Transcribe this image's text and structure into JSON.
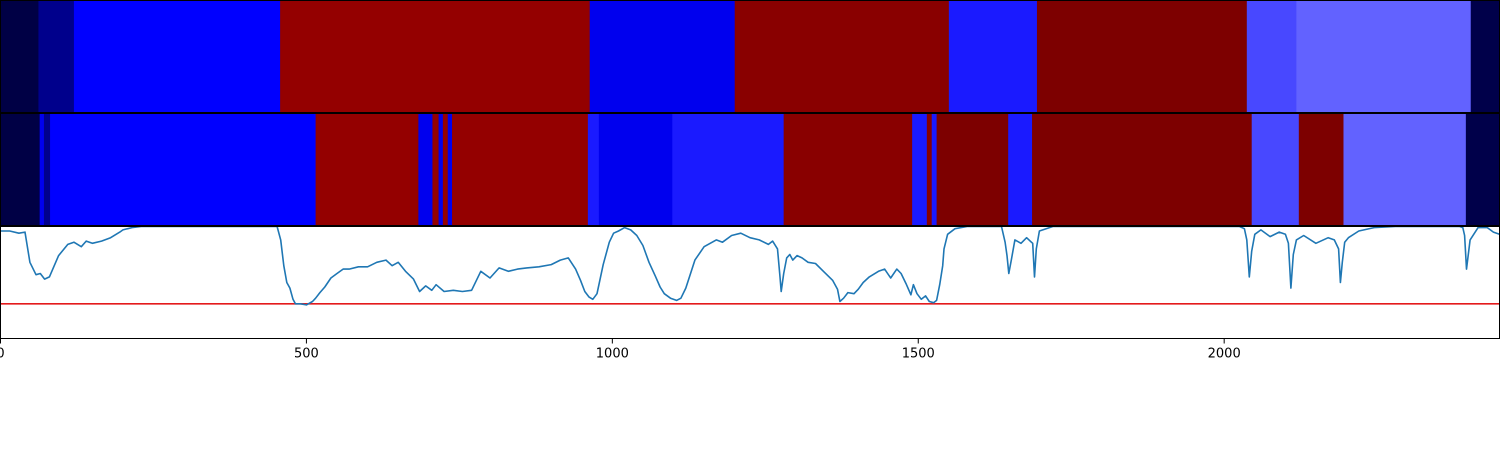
{
  "chart_data": [
    {
      "type": "heatmap",
      "panel": "segmentation-track-top",
      "x_range": [
        0,
        2450
      ],
      "segments": [
        {
          "start": 0,
          "end": 62,
          "color": "#000045"
        },
        {
          "start": 62,
          "end": 120,
          "color": "#00008c"
        },
        {
          "start": 120,
          "end": 457,
          "color": "#0000ff"
        },
        {
          "start": 457,
          "end": 963,
          "color": "#940000"
        },
        {
          "start": 963,
          "end": 1200,
          "color": "#0000ee"
        },
        {
          "start": 1200,
          "end": 1550,
          "color": "#890000"
        },
        {
          "start": 1550,
          "end": 1694,
          "color": "#1a1aff"
        },
        {
          "start": 1694,
          "end": 2037,
          "color": "#7d0000"
        },
        {
          "start": 2037,
          "end": 2118,
          "color": "#4848ff"
        },
        {
          "start": 2118,
          "end": 2403,
          "color": "#6262ff"
        },
        {
          "start": 2403,
          "end": 2450,
          "color": "#00004a"
        }
      ]
    },
    {
      "type": "heatmap",
      "panel": "segmentation-track-bottom",
      "x_range": [
        0,
        2450
      ],
      "segments": [
        {
          "start": 0,
          "end": 64,
          "color": "#000045"
        },
        {
          "start": 64,
          "end": 71,
          "color": "#0000ee"
        },
        {
          "start": 71,
          "end": 81,
          "color": "#00008c"
        },
        {
          "start": 81,
          "end": 515,
          "color": "#0000ff"
        },
        {
          "start": 515,
          "end": 683,
          "color": "#940000"
        },
        {
          "start": 683,
          "end": 706,
          "color": "#0000ee"
        },
        {
          "start": 706,
          "end": 716,
          "color": "#940000"
        },
        {
          "start": 716,
          "end": 723,
          "color": "#0000ee"
        },
        {
          "start": 723,
          "end": 731,
          "color": "#940000"
        },
        {
          "start": 731,
          "end": 738,
          "color": "#0000ee"
        },
        {
          "start": 738,
          "end": 960,
          "color": "#940000"
        },
        {
          "start": 960,
          "end": 978,
          "color": "#1a1aff"
        },
        {
          "start": 978,
          "end": 1098,
          "color": "#0000ee"
        },
        {
          "start": 1098,
          "end": 1280,
          "color": "#1a1aff"
        },
        {
          "start": 1280,
          "end": 1490,
          "color": "#890000"
        },
        {
          "start": 1490,
          "end": 1514,
          "color": "#1a1aff"
        },
        {
          "start": 1514,
          "end": 1522,
          "color": "#890000"
        },
        {
          "start": 1522,
          "end": 1530,
          "color": "#1a1aff"
        },
        {
          "start": 1530,
          "end": 1647,
          "color": "#7d0000"
        },
        {
          "start": 1647,
          "end": 1686,
          "color": "#1a1aff"
        },
        {
          "start": 1686,
          "end": 2045,
          "color": "#7d0000"
        },
        {
          "start": 2045,
          "end": 2122,
          "color": "#4848ff"
        },
        {
          "start": 2122,
          "end": 2195,
          "color": "#7d0000"
        },
        {
          "start": 2195,
          "end": 2395,
          "color": "#6262ff"
        },
        {
          "start": 2395,
          "end": 2450,
          "color": "#00004a"
        }
      ]
    },
    {
      "type": "line",
      "panel": "score-plot",
      "xlim": [
        0,
        2450
      ],
      "ylim": [
        0,
        1
      ],
      "series_color": "#1f77b4",
      "threshold": {
        "y": 0.31,
        "color": "#e41a1c"
      },
      "x": [
        0,
        15,
        30,
        40,
        48,
        58,
        65,
        72,
        80,
        95,
        110,
        120,
        132,
        140,
        150,
        165,
        180,
        195,
        200,
        215,
        230,
        250,
        300,
        350,
        400,
        420,
        440,
        452,
        458,
        463,
        468,
        473,
        478,
        482,
        490,
        500,
        510,
        515,
        522,
        530,
        540,
        550,
        560,
        570,
        585,
        600,
        615,
        630,
        640,
        650,
        662,
        675,
        685,
        695,
        705,
        712,
        725,
        740,
        755,
        770,
        785,
        800,
        815,
        830,
        845,
        860,
        880,
        900,
        915,
        928,
        940,
        948,
        955,
        962,
        968,
        975,
        985,
        995,
        1002,
        1010,
        1020,
        1030,
        1040,
        1050,
        1060,
        1070,
        1078,
        1085,
        1095,
        1105,
        1112,
        1120,
        1135,
        1150,
        1160,
        1170,
        1180,
        1195,
        1210,
        1225,
        1240,
        1255,
        1262,
        1270,
        1274,
        1276,
        1280,
        1285,
        1290,
        1295,
        1302,
        1310,
        1320,
        1332,
        1345,
        1360,
        1368,
        1372,
        1378,
        1385,
        1395,
        1402,
        1410,
        1420,
        1435,
        1445,
        1455,
        1465,
        1472,
        1480,
        1488,
        1492,
        1498,
        1505,
        1512,
        1518,
        1525,
        1530,
        1535,
        1540,
        1542,
        1548,
        1560,
        1580,
        1610,
        1630,
        1636,
        1642,
        1645,
        1648,
        1652,
        1658,
        1668,
        1677,
        1683,
        1687,
        1690,
        1693,
        1698,
        1720,
        1760,
        1800,
        1850,
        1900,
        1950,
        2000,
        2025,
        2033,
        2037,
        2041,
        2045,
        2050,
        2060,
        2075,
        2090,
        2100,
        2105,
        2109,
        2113,
        2118,
        2130,
        2150,
        2170,
        2180,
        2187,
        2190,
        2193,
        2197,
        2203,
        2220,
        2245,
        2280,
        2320,
        2360,
        2385,
        2390,
        2393,
        2396,
        2402,
        2415,
        2430,
        2440,
        2450
      ],
      "y": [
        0.96,
        0.96,
        0.94,
        0.95,
        0.68,
        0.57,
        0.58,
        0.53,
        0.55,
        0.74,
        0.84,
        0.86,
        0.82,
        0.87,
        0.85,
        0.87,
        0.9,
        0.95,
        0.97,
        0.99,
        1.0,
        1.0,
        1.0,
        1.0,
        1.0,
        1.0,
        1.0,
        1.0,
        0.88,
        0.65,
        0.5,
        0.45,
        0.35,
        0.31,
        0.31,
        0.3,
        0.33,
        0.36,
        0.41,
        0.46,
        0.54,
        0.58,
        0.62,
        0.62,
        0.64,
        0.64,
        0.68,
        0.7,
        0.65,
        0.68,
        0.6,
        0.53,
        0.42,
        0.47,
        0.43,
        0.48,
        0.42,
        0.43,
        0.42,
        0.43,
        0.6,
        0.54,
        0.63,
        0.6,
        0.62,
        0.63,
        0.64,
        0.66,
        0.7,
        0.72,
        0.62,
        0.52,
        0.42,
        0.37,
        0.35,
        0.4,
        0.66,
        0.86,
        0.94,
        0.96,
        0.99,
        0.97,
        0.92,
        0.83,
        0.68,
        0.56,
        0.46,
        0.4,
        0.36,
        0.34,
        0.36,
        0.45,
        0.7,
        0.82,
        0.85,
        0.88,
        0.86,
        0.92,
        0.94,
        0.9,
        0.88,
        0.84,
        0.87,
        0.8,
        0.55,
        0.42,
        0.58,
        0.72,
        0.75,
        0.7,
        0.74,
        0.72,
        0.68,
        0.67,
        0.6,
        0.52,
        0.44,
        0.33,
        0.36,
        0.41,
        0.4,
        0.44,
        0.5,
        0.55,
        0.6,
        0.62,
        0.54,
        0.62,
        0.58,
        0.49,
        0.39,
        0.48,
        0.4,
        0.35,
        0.38,
        0.33,
        0.32,
        0.34,
        0.48,
        0.65,
        0.8,
        0.93,
        0.98,
        1.0,
        1.0,
        1.0,
        1.0,
        0.86,
        0.74,
        0.58,
        0.7,
        0.88,
        0.85,
        0.9,
        0.87,
        0.85,
        0.55,
        0.8,
        0.96,
        1.0,
        1.0,
        1.0,
        1.0,
        1.0,
        1.0,
        1.0,
        1.0,
        0.98,
        0.88,
        0.55,
        0.78,
        0.93,
        0.97,
        0.91,
        0.95,
        0.93,
        0.85,
        0.45,
        0.75,
        0.88,
        0.92,
        0.85,
        0.9,
        0.88,
        0.8,
        0.5,
        0.68,
        0.86,
        0.9,
        0.96,
        0.99,
        1.0,
        1.0,
        1.0,
        1.0,
        0.99,
        0.92,
        0.62,
        0.88,
        0.99,
        0.99,
        0.95,
        0.93
      ],
      "xticks": [
        {
          "value": 0,
          "label": "0"
        },
        {
          "value": 500,
          "label": "500"
        },
        {
          "value": 1000,
          "label": "1000"
        },
        {
          "value": 1500,
          "label": "1500"
        },
        {
          "value": 2000,
          "label": "2000"
        }
      ]
    }
  ]
}
